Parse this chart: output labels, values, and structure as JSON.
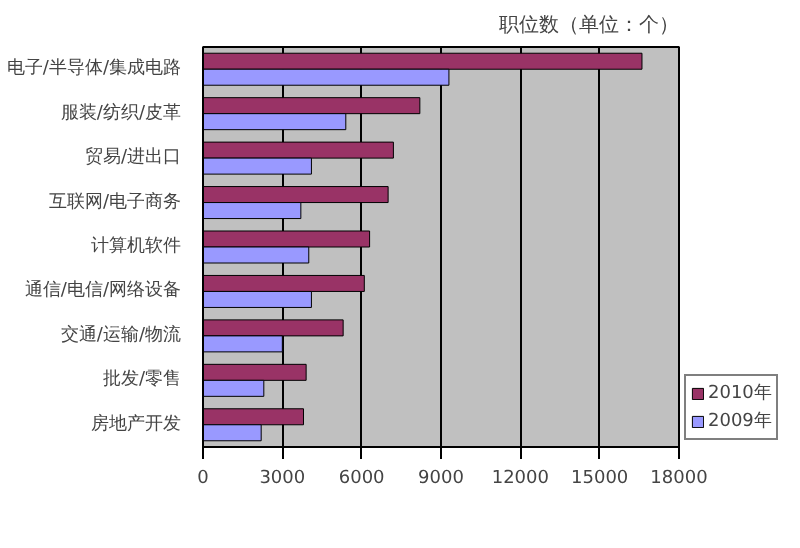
{
  "chart_data": {
    "type": "bar",
    "orientation": "horizontal",
    "title": "职位数（单位：个）",
    "categories": [
      "电子/半导体/集成电路",
      "服装/纺织/皮革",
      "贸易/进出口",
      "互联网/电子商务",
      "计算机软件",
      "通信/电信/网络设备",
      "交通/运输/物流",
      "批发/零售",
      "房地产开发"
    ],
    "series": [
      {
        "name": "2010年",
        "color": "#993366",
        "values": [
          16600,
          8200,
          7200,
          7000,
          6300,
          6100,
          5300,
          3900,
          3800
        ]
      },
      {
        "name": "2009年",
        "color": "#9999ff",
        "values": [
          9300,
          5400,
          4100,
          3700,
          4000,
          4100,
          3000,
          2300,
          2200
        ]
      }
    ],
    "xlim": [
      0,
      18000
    ],
    "xticks": [
      0,
      3000,
      6000,
      9000,
      12000,
      15000,
      18000
    ],
    "grid": "x",
    "legend": "right"
  }
}
